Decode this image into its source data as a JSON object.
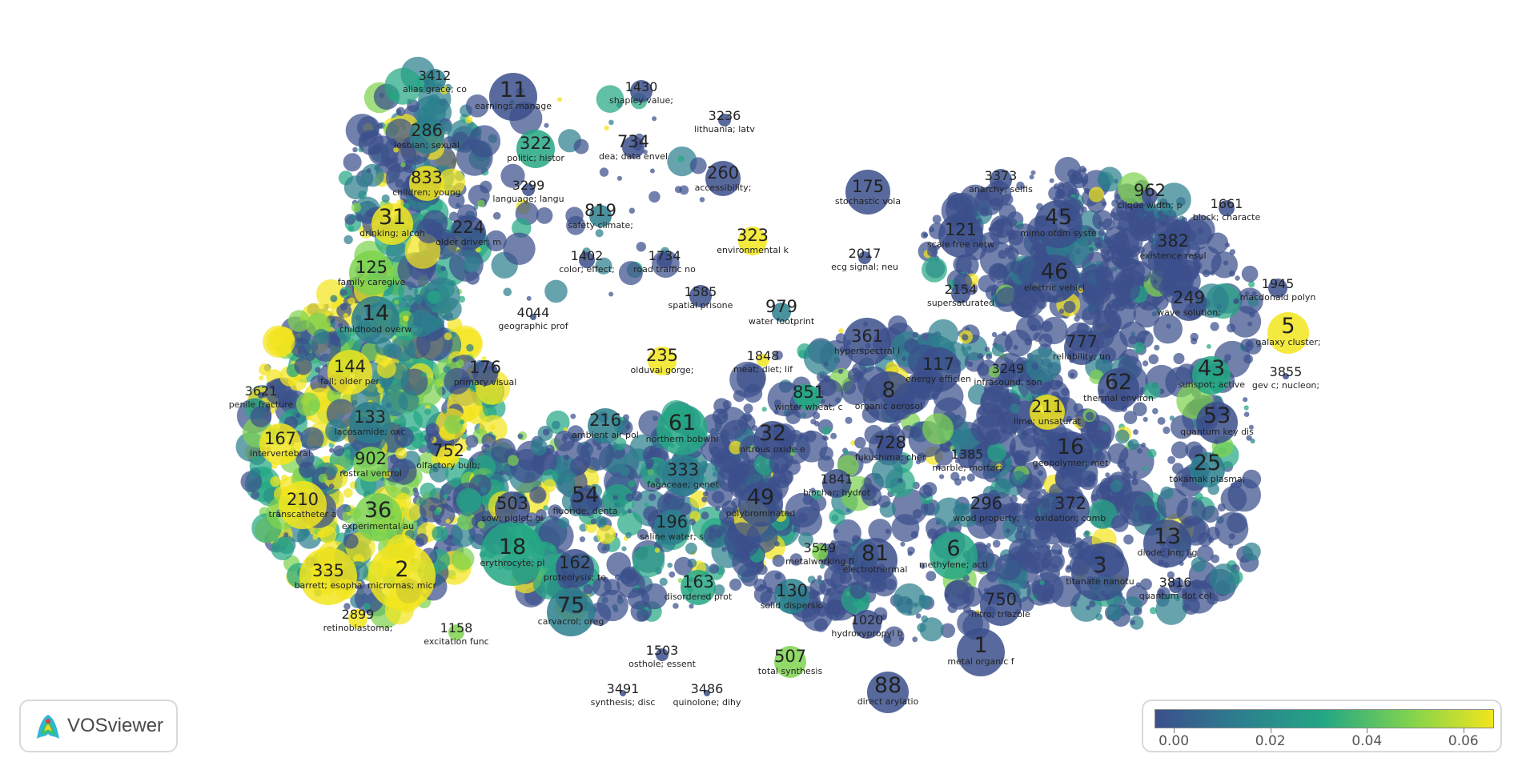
{
  "app": {
    "brand_name": "VOSviewer",
    "logo_icon": "vosviewer-logo-icon"
  },
  "color_scale": {
    "colors": [
      "#3b4f8c",
      "#2c7f8e",
      "#24a784",
      "#7ed34f",
      "#f2e51d"
    ],
    "tick_labels": [
      "0.00",
      "0.02",
      "0.04",
      "0.06"
    ],
    "tick_values": [
      0.0,
      0.02,
      0.04,
      0.06
    ],
    "range": [
      -0.004,
      0.066
    ]
  },
  "clusters": [
    {
      "n": "11",
      "t": "earnings manage"
    },
    {
      "n": "3412",
      "t": "alias grace; co"
    },
    {
      "n": "1430",
      "t": "shapley value;"
    },
    {
      "n": "286",
      "t": "lesbian; sexual"
    },
    {
      "n": "322",
      "t": "politic; histor"
    },
    {
      "n": "734",
      "t": "dea; data envel"
    },
    {
      "n": "3236",
      "t": "lithuania; latv"
    },
    {
      "n": "833",
      "t": "children; young"
    },
    {
      "n": "3299",
      "t": "language; langu"
    },
    {
      "n": "260",
      "t": "accessibility;"
    },
    {
      "n": "31",
      "t": "drinking; alcoh"
    },
    {
      "n": "224",
      "t": "older driver; m"
    },
    {
      "n": "819",
      "t": "safety climate;"
    },
    {
      "n": "323",
      "t": "environmental k"
    },
    {
      "n": "125",
      "t": "family caregive"
    },
    {
      "n": "1402",
      "t": "color; effect;"
    },
    {
      "n": "1734",
      "t": "road traffic no"
    },
    {
      "n": "1585",
      "t": "spatial prisone"
    },
    {
      "n": "979",
      "t": "water footprint"
    },
    {
      "n": "4044",
      "t": "geographic prof"
    },
    {
      "n": "14",
      "t": "childhood overw"
    },
    {
      "n": "144",
      "t": "fall; older per"
    },
    {
      "n": "176",
      "t": "primary visual"
    },
    {
      "n": "235",
      "t": "olduvai gorge;"
    },
    {
      "n": "1848",
      "t": "meat; diet; lif"
    },
    {
      "n": "3621",
      "t": "penile fracture"
    },
    {
      "n": "133",
      "t": "lacosamide; oxc"
    },
    {
      "n": "216",
      "t": "ambient air pol"
    },
    {
      "n": "61",
      "t": "northern bobwhi"
    },
    {
      "n": "851",
      "t": "winter wheat; c"
    },
    {
      "n": "167",
      "t": "intervertebral"
    },
    {
      "n": "902",
      "t": "rostral ventrol"
    },
    {
      "n": "752",
      "t": "olfactory bulb;"
    },
    {
      "n": "32",
      "t": "nitrous oxide e"
    },
    {
      "n": "210",
      "t": "transcatheter a"
    },
    {
      "n": "503",
      "t": "sow; piglet; gi"
    },
    {
      "n": "54",
      "t": "fluoride; denta"
    },
    {
      "n": "333",
      "t": "fagaceae; genet"
    },
    {
      "n": "36",
      "t": "experimental au"
    },
    {
      "n": "196",
      "t": "saline water; s"
    },
    {
      "n": "49",
      "t": "polybrominated"
    },
    {
      "n": "18",
      "t": "erythrocyte; pl"
    },
    {
      "n": "162",
      "t": "proteolysis; te"
    },
    {
      "n": "3549",
      "t": "metalworking fl"
    },
    {
      "n": "335",
      "t": "barrett; esopha"
    },
    {
      "n": "2",
      "t": "micrornas; micr"
    },
    {
      "n": "163",
      "t": "disordered prot"
    },
    {
      "n": "130",
      "t": "solid dispersio"
    },
    {
      "n": "75",
      "t": "carvacrol; oreg"
    },
    {
      "n": "2899",
      "t": "retinoblastoma;"
    },
    {
      "n": "1158",
      "t": "excitation func"
    },
    {
      "n": "1503",
      "t": "osthole; essent"
    },
    {
      "n": "507",
      "t": "total synthesis"
    },
    {
      "n": "3491",
      "t": "synthesis; disc"
    },
    {
      "n": "3486",
      "t": "quinolone; dihy"
    },
    {
      "n": "175",
      "t": "stochastic vola"
    },
    {
      "n": "3373",
      "t": "anarchy; selfis"
    },
    {
      "n": "45",
      "t": "mimo ofdm syste"
    },
    {
      "n": "121",
      "t": "scale free netw"
    },
    {
      "n": "962",
      "t": "clique width; p"
    },
    {
      "n": "1661",
      "t": "block; characte"
    },
    {
      "n": "2017",
      "t": "ecg signal; neu"
    },
    {
      "n": "382",
      "t": "existence resul"
    },
    {
      "n": "46",
      "t": "electric vehicl"
    },
    {
      "n": "2154",
      "t": "supersaturated"
    },
    {
      "n": "1945",
      "t": "macdonald polyn"
    },
    {
      "n": "249",
      "t": "wave solution;"
    },
    {
      "n": "5",
      "t": "galaxy cluster;"
    },
    {
      "n": "361",
      "t": "hyperspectral i"
    },
    {
      "n": "117",
      "t": "energy efficien"
    },
    {
      "n": "777",
      "t": "reliability; un"
    },
    {
      "n": "3249",
      "t": "infrasound; son"
    },
    {
      "n": "3855",
      "t": "gev c; nucleon;"
    },
    {
      "n": "43",
      "t": "sunspot; active"
    },
    {
      "n": "8",
      "t": "organic aerosol"
    },
    {
      "n": "62",
      "t": "thermal environ"
    },
    {
      "n": "211",
      "t": "lime; unsaturat"
    },
    {
      "n": "53",
      "t": "quantum key dis"
    },
    {
      "n": "728",
      "t": "fukushima; cher"
    },
    {
      "n": "16",
      "t": "geopolymer; met"
    },
    {
      "n": "1385",
      "t": "marble; mortar;"
    },
    {
      "n": "25",
      "t": "tokamak plasma;"
    },
    {
      "n": "1841",
      "t": "biochar; hydrot"
    },
    {
      "n": "296",
      "t": "wood property;"
    },
    {
      "n": "372",
      "t": "oxidation; comb"
    },
    {
      "n": "13",
      "t": "diode; inn; lig"
    },
    {
      "n": "6",
      "t": "methylene; acti"
    },
    {
      "n": "81",
      "t": "electrothermal"
    },
    {
      "n": "3",
      "t": "titanate nanotu"
    },
    {
      "n": "3816",
      "t": "quantum dot cel"
    },
    {
      "n": "750",
      "t": "nitro; triazole"
    },
    {
      "n": "1020",
      "t": "hydroxypropyl b"
    },
    {
      "n": "1",
      "t": "metal organic f"
    },
    {
      "n": "88",
      "t": "direct arylatio"
    }
  ]
}
